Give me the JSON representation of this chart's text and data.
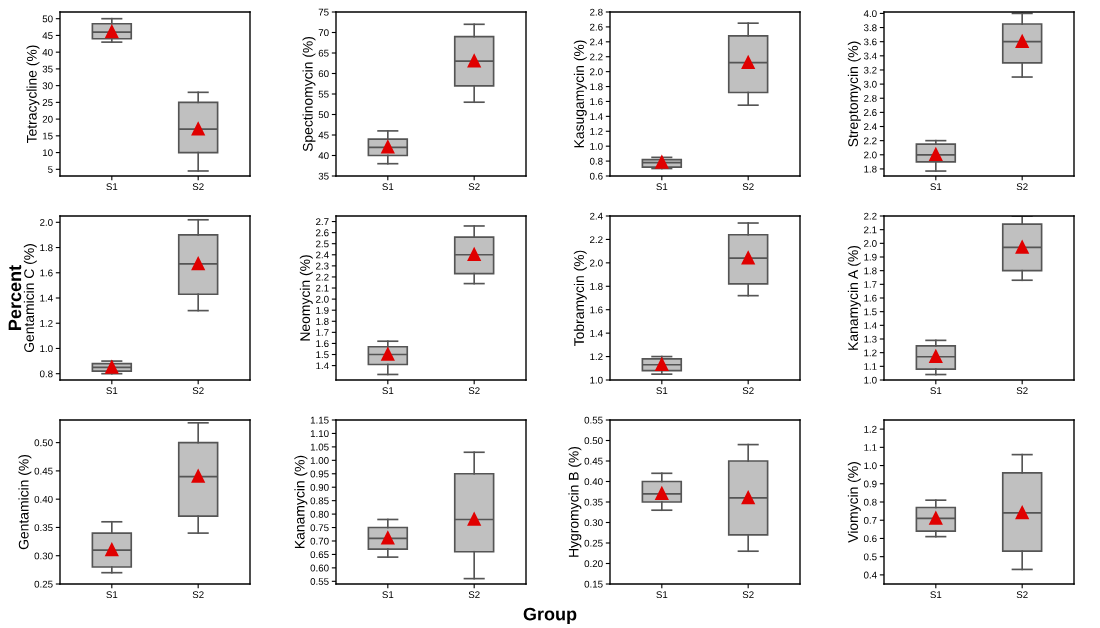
{
  "chart_data": [
    {
      "type": "box",
      "ylabel": "Tetracycline (%)",
      "categories": [
        "S1",
        "S2"
      ],
      "ylim": [
        3,
        52
      ],
      "yticks": [
        5,
        10,
        15,
        20,
        25,
        30,
        35,
        40,
        45,
        50
      ],
      "color": "#c0c0c0",
      "boxes": [
        {
          "low": 43,
          "q1": 44,
          "median": 46,
          "q3": 48.5,
          "high": 50,
          "mean": 46
        },
        {
          "low": 4.5,
          "q1": 10,
          "median": 17,
          "q3": 25,
          "high": 28,
          "mean": 17
        }
      ]
    },
    {
      "type": "box",
      "ylabel": "Spectinomycin (%)",
      "categories": [
        "S1",
        "S2"
      ],
      "ylim": [
        35,
        75
      ],
      "yticks": [
        35,
        40,
        45,
        50,
        55,
        60,
        65,
        70,
        75
      ],
      "color": "#c0c0c0",
      "boxes": [
        {
          "low": 38,
          "q1": 40,
          "median": 42,
          "q3": 44,
          "high": 46,
          "mean": 42
        },
        {
          "low": 53,
          "q1": 57,
          "median": 63,
          "q3": 69,
          "high": 72,
          "mean": 63
        }
      ]
    },
    {
      "type": "box",
      "ylabel": "Kasugamycin (%)",
      "categories": [
        "S1",
        "S2"
      ],
      "ylim": [
        0.6,
        2.8
      ],
      "yticks": [
        0.6,
        0.8,
        {
          "value": 1,
          "label": "1.0"
        },
        1.2,
        1.4,
        1.6,
        1.8,
        {
          "value": 2,
          "label": "2.0"
        },
        2.2,
        2.4,
        2.6,
        2.8
      ],
      "color": "#c0c0c0",
      "boxes": [
        {
          "low": 0.7,
          "q1": 0.72,
          "median": 0.78,
          "q3": 0.82,
          "high": 0.85,
          "mean": 0.78
        },
        {
          "low": 1.55,
          "q1": 1.72,
          "median": 2.12,
          "q3": 2.48,
          "high": 2.65,
          "mean": 2.12
        }
      ]
    },
    {
      "type": "box",
      "ylabel": "Streptomycin (%)",
      "categories": [
        "S1",
        "S2"
      ],
      "ylim": [
        1.7,
        4.02
      ],
      "yticks": [
        1.8,
        {
          "value": 2,
          "label": "2.0"
        },
        2.2,
        2.4,
        2.6,
        2.8,
        {
          "value": 3,
          "label": "3.0"
        },
        3.2,
        3.4,
        3.6,
        3.8,
        {
          "value": 4,
          "label": "4.0"
        }
      ],
      "color": "#c0c0c0",
      "boxes": [
        {
          "low": 1.77,
          "q1": 1.9,
          "median": 2.0,
          "q3": 2.15,
          "high": 2.2,
          "mean": 2.0
        },
        {
          "low": 3.1,
          "q1": 3.3,
          "median": 3.6,
          "q3": 3.85,
          "high": 4.0,
          "mean": 3.6
        }
      ]
    },
    {
      "type": "box",
      "ylabel": "Gentamicin C (%)",
      "categories": [
        "S1",
        "S2"
      ],
      "ylim": [
        0.75,
        2.05
      ],
      "yticks": [
        0.8,
        {
          "value": 1,
          "label": "1.0"
        },
        1.2,
        1.4,
        1.6,
        1.8,
        {
          "value": 2,
          "label": "2.0"
        }
      ],
      "color": "#c0c0c0",
      "annotations": [
        "Percent"
      ],
      "boxes": [
        {
          "low": 0.8,
          "q1": 0.82,
          "median": 0.85,
          "q3": 0.88,
          "high": 0.9,
          "mean": 0.85
        },
        {
          "low": 1.3,
          "q1": 1.43,
          "median": 1.67,
          "q3": 1.9,
          "high": 2.02,
          "mean": 1.67
        }
      ]
    },
    {
      "type": "box",
      "ylabel": "Neomycin (%)",
      "categories": [
        "S1",
        "S2"
      ],
      "ylim": [
        1.27,
        2.75
      ],
      "yticks": [
        1.4,
        1.5,
        1.6,
        1.7,
        1.8,
        1.9,
        {
          "value": 2,
          "label": "2.0"
        },
        2.1,
        2.2,
        2.3,
        2.4,
        2.5,
        2.6,
        2.7
      ],
      "color": "#c0c0c0",
      "boxes": [
        {
          "low": 1.32,
          "q1": 1.41,
          "median": 1.5,
          "q3": 1.57,
          "high": 1.62,
          "mean": 1.5
        },
        {
          "low": 2.14,
          "q1": 2.23,
          "median": 2.4,
          "q3": 2.56,
          "high": 2.66,
          "mean": 2.4
        }
      ]
    },
    {
      "type": "box",
      "ylabel": "Tobramycin (%)",
      "categories": [
        "S1",
        "S2"
      ],
      "ylim": [
        1.0,
        2.4
      ],
      "yticks": [
        {
          "value": 1,
          "label": "1.0"
        },
        1.2,
        1.4,
        1.6,
        1.8,
        {
          "value": 2,
          "label": "2.0"
        },
        2.2,
        2.4
      ],
      "color": "#c0c0c0",
      "annotations": [
        "Group"
      ],
      "boxes": [
        {
          "low": 1.05,
          "q1": 1.08,
          "median": 1.13,
          "q3": 1.18,
          "high": 1.2,
          "mean": 1.13
        },
        {
          "low": 1.72,
          "q1": 1.82,
          "median": 2.04,
          "q3": 2.24,
          "high": 2.34,
          "mean": 2.04
        }
      ]
    },
    {
      "type": "box",
      "ylabel": "Kanamycin A (%)",
      "categories": [
        "S1",
        "S2"
      ],
      "ylim": [
        1.0,
        2.2
      ],
      "yticks": [
        {
          "value": 1,
          "label": "1.0"
        },
        1.1,
        1.2,
        1.3,
        1.4,
        1.5,
        1.6,
        1.7,
        1.8,
        1.9,
        {
          "value": 2,
          "label": "2.0"
        },
        2.1,
        2.2
      ],
      "color": "#c0c0c0",
      "boxes": [
        {
          "low": 1.04,
          "q1": 1.08,
          "median": 1.17,
          "q3": 1.25,
          "high": 1.29,
          "mean": 1.17
        },
        {
          "low": 1.73,
          "q1": 1.8,
          "median": 1.97,
          "q3": 2.14,
          "high": 2.2,
          "mean": 1.97
        }
      ]
    },
    {
      "type": "box",
      "ylabel": "Gentamicin (%)",
      "categories": [
        "S1",
        "S2"
      ],
      "ylim": [
        0.25,
        0.54
      ],
      "yticks": [
        0.25,
        {
          "value": 0.3,
          "label": "0.30"
        },
        0.35,
        {
          "value": 0.4,
          "label": "0.40"
        },
        0.45,
        {
          "value": 0.5,
          "label": "0.50"
        }
      ],
      "color": "#c0c0c0",
      "boxes": [
        {
          "low": 0.27,
          "q1": 0.28,
          "median": 0.31,
          "q3": 0.34,
          "high": 0.36,
          "mean": 0.31
        },
        {
          "low": 0.34,
          "q1": 0.37,
          "median": 0.44,
          "q3": 0.5,
          "high": 0.535,
          "mean": 0.44
        }
      ]
    },
    {
      "type": "box",
      "ylabel": "Kanamycin (%)",
      "categories": [
        "S1",
        "S2"
      ],
      "ylim": [
        0.54,
        1.15
      ],
      "yticks": [
        0.55,
        {
          "value": 0.6,
          "label": "0.60"
        },
        0.65,
        {
          "value": 0.7,
          "label": "0.70"
        },
        0.75,
        {
          "value": 0.8,
          "label": "0.80"
        },
        0.85,
        {
          "value": 0.9,
          "label": "0.90"
        },
        0.95,
        {
          "value": 1,
          "label": "1.00"
        },
        1.05,
        {
          "value": 1.1,
          "label": "1.10"
        },
        1.15
      ],
      "color": "#c0c0c0",
      "boxes": [
        {
          "low": 0.64,
          "q1": 0.67,
          "median": 0.71,
          "q3": 0.75,
          "high": 0.78,
          "mean": 0.71
        },
        {
          "low": 0.56,
          "q1": 0.66,
          "median": 0.78,
          "q3": 0.95,
          "high": 1.03,
          "mean": 0.78
        }
      ]
    },
    {
      "type": "box",
      "ylabel": "Hygromycin B (%)",
      "categories": [
        "S1",
        "S2"
      ],
      "ylim": [
        0.15,
        0.55
      ],
      "yticks": [
        0.15,
        {
          "value": 0.2,
          "label": "0.20"
        },
        0.25,
        {
          "value": 0.3,
          "label": "0.30"
        },
        0.35,
        {
          "value": 0.4,
          "label": "0.40"
        },
        0.45,
        {
          "value": 0.5,
          "label": "0.50"
        },
        0.55
      ],
      "color": "#c0c0c0",
      "boxes": [
        {
          "low": 0.33,
          "q1": 0.35,
          "median": 0.37,
          "q3": 0.4,
          "high": 0.42,
          "mean": 0.37
        },
        {
          "low": 0.23,
          "q1": 0.27,
          "median": 0.36,
          "q3": 0.45,
          "high": 0.49,
          "mean": 0.36
        }
      ]
    },
    {
      "type": "box",
      "ylabel": "Viomycin (%)",
      "categories": [
        "S1",
        "S2"
      ],
      "ylim": [
        0.35,
        1.25
      ],
      "yticks": [
        0.4,
        0.5,
        0.6,
        0.7,
        0.8,
        0.9,
        {
          "value": 1,
          "label": "1.0"
        },
        1.1,
        1.2
      ],
      "color": "#c0c0c0",
      "boxes": [
        {
          "low": 0.61,
          "q1": 0.64,
          "median": 0.71,
          "q3": 0.77,
          "high": 0.81,
          "mean": 0.71
        },
        {
          "low": 0.43,
          "q1": 0.53,
          "median": 0.74,
          "q3": 0.96,
          "high": 1.06,
          "mean": 0.74
        }
      ]
    }
  ]
}
